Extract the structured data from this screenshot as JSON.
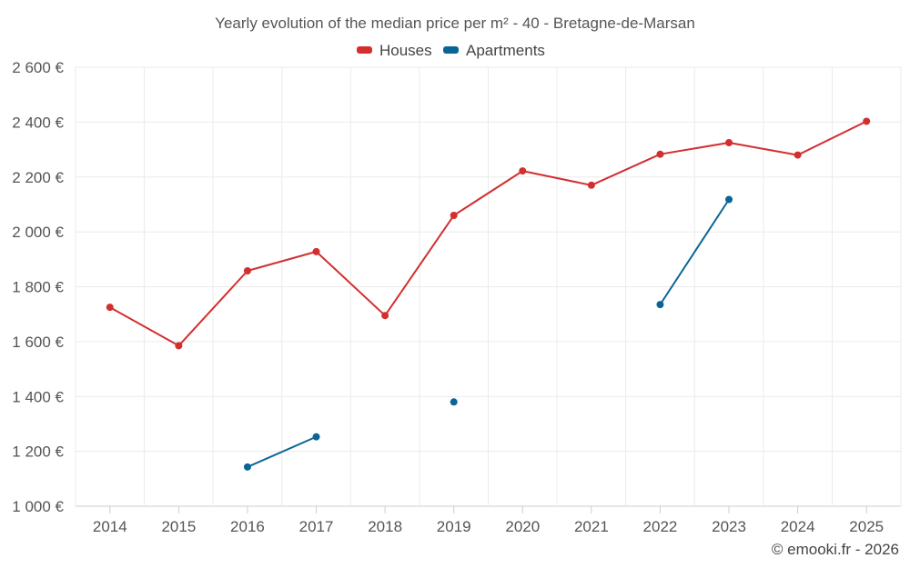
{
  "chart_data": {
    "type": "line",
    "title": "Yearly evolution of the median price per m² - 40 - Bretagne-de-Marsan",
    "categories": [
      "2014",
      "2015",
      "2016",
      "2017",
      "2018",
      "2019",
      "2020",
      "2021",
      "2022",
      "2023",
      "2024",
      "2025"
    ],
    "y_ticks": [
      "1 000 €",
      "1 200 €",
      "1 400 €",
      "1 600 €",
      "1 800 €",
      "2 000 €",
      "2 200 €",
      "2 400 €",
      "2 600 €"
    ],
    "ylim": [
      1000,
      2600
    ],
    "y_tick_values": [
      1000,
      1200,
      1400,
      1600,
      1800,
      2000,
      2200,
      2400,
      2600
    ],
    "grid": true,
    "legend_position": "top-center",
    "series": [
      {
        "name": "Houses",
        "color": "#d32f2f",
        "values": [
          1725,
          1585,
          1858,
          1928,
          1695,
          2060,
          2222,
          2170,
          2283,
          2325,
          2280,
          2403
        ]
      },
      {
        "name": "Apartments",
        "color": "#0a6596",
        "values": [
          null,
          null,
          1143,
          1253,
          null,
          1380,
          null,
          null,
          1735,
          2118,
          null,
          null
        ]
      }
    ],
    "credit": "© emooki.fr - 2026"
  }
}
